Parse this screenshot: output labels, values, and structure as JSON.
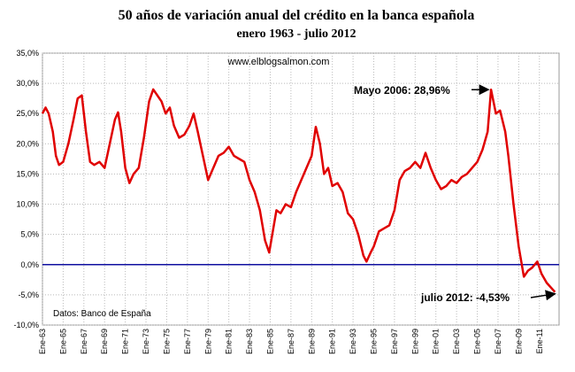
{
  "chart_data": {
    "type": "line",
    "title": "50 años de variación anual del crédito en la banca española",
    "subtitle": "enero 1963 - julio 2012",
    "source_url": "www.elblogsalmon.com",
    "source_note": "Datos: Banco de España",
    "annotations": [
      {
        "text": "Mayo 2006: 28,96%",
        "x": 2006.33,
        "y": 28.96
      },
      {
        "text": "julio 2012: -4,53%",
        "x": 2012.5,
        "y": -4.53
      }
    ],
    "x": [
      1963.0,
      1963.3,
      1963.6,
      1964.0,
      1964.3,
      1964.6,
      1965.0,
      1965.5,
      1966.0,
      1966.4,
      1966.8,
      1967.2,
      1967.6,
      1968.0,
      1968.5,
      1969.0,
      1969.5,
      1970.0,
      1970.3,
      1970.6,
      1971.0,
      1971.4,
      1971.8,
      1972.3,
      1972.8,
      1973.3,
      1973.7,
      1974.1,
      1974.5,
      1974.9,
      1975.3,
      1975.7,
      1976.2,
      1976.7,
      1977.2,
      1977.6,
      1978.0,
      1978.5,
      1979.0,
      1979.5,
      1980.0,
      1980.5,
      1981.0,
      1981.5,
      1982.0,
      1982.5,
      1983.0,
      1983.5,
      1984.0,
      1984.5,
      1984.9,
      1985.3,
      1985.6,
      1986.0,
      1986.5,
      1987.0,
      1987.5,
      1988.0,
      1988.5,
      1989.0,
      1989.4,
      1989.8,
      1990.2,
      1990.6,
      1991.0,
      1991.5,
      1992.0,
      1992.5,
      1993.0,
      1993.5,
      1994.0,
      1994.3,
      1994.7,
      1995.0,
      1995.5,
      1996.0,
      1996.5,
      1997.0,
      1997.5,
      1998.0,
      1998.5,
      1999.0,
      1999.5,
      2000.0,
      2000.5,
      2001.0,
      2001.5,
      2002.0,
      2002.5,
      2003.0,
      2003.5,
      2004.0,
      2004.5,
      2005.0,
      2005.5,
      2006.0,
      2006.33,
      2006.8,
      2007.2,
      2007.7,
      2008.0,
      2008.5,
      2009.0,
      2009.5,
      2009.9,
      2010.3,
      2010.8,
      2011.2,
      2011.7,
      2012.5
    ],
    "series": [
      {
        "name": "Variación anual del crédito",
        "color": "#e00000",
        "values": [
          25,
          26,
          25,
          22,
          18,
          16.5,
          17,
          20,
          24,
          27.5,
          28,
          22,
          17,
          16.5,
          17,
          16,
          20,
          24,
          25.2,
          22,
          16,
          13.5,
          15,
          16,
          21,
          27,
          29,
          28,
          27,
          25,
          26,
          23,
          21,
          21.5,
          23,
          25,
          22,
          18,
          14,
          16,
          18,
          18.5,
          19.5,
          18,
          17.5,
          17,
          14,
          12,
          9,
          4,
          2,
          6,
          9,
          8.5,
          10,
          9.5,
          12,
          14,
          16,
          18,
          22.8,
          20,
          15,
          16,
          13,
          13.5,
          12,
          8.5,
          7.5,
          5,
          1.5,
          0.5,
          2,
          3,
          5.5,
          6,
          6.5,
          9,
          14,
          15.5,
          16,
          17,
          16,
          18.5,
          16,
          14,
          12.5,
          13,
          14,
          13.5,
          14.5,
          15,
          16,
          17,
          19,
          22,
          28.96,
          25,
          25.5,
          22,
          18,
          10,
          3,
          -2,
          -1,
          -0.5,
          0.5,
          -1.5,
          -3,
          -4.53
        ]
      }
    ],
    "xlim": [
      1963,
      2012.9
    ],
    "xticks": [
      {
        "value": 1963,
        "label": "Ene-63"
      },
      {
        "value": 1965,
        "label": "Ene-65"
      },
      {
        "value": 1967,
        "label": "Ene-67"
      },
      {
        "value": 1969,
        "label": "Ene-69"
      },
      {
        "value": 1971,
        "label": "Ene-71"
      },
      {
        "value": 1973,
        "label": "Ene-73"
      },
      {
        "value": 1975,
        "label": "Ene-75"
      },
      {
        "value": 1977,
        "label": "Ene-77"
      },
      {
        "value": 1979,
        "label": "Ene-79"
      },
      {
        "value": 1981,
        "label": "Ene-81"
      },
      {
        "value": 1983,
        "label": "Ene-83"
      },
      {
        "value": 1985,
        "label": "Ene-85"
      },
      {
        "value": 1987,
        "label": "Ene-87"
      },
      {
        "value": 1989,
        "label": "Ene-89"
      },
      {
        "value": 1991,
        "label": "Ene-91"
      },
      {
        "value": 1993,
        "label": "Ene-93"
      },
      {
        "value": 1995,
        "label": "Ene-95"
      },
      {
        "value": 1997,
        "label": "Ene-97"
      },
      {
        "value": 1999,
        "label": "Ene-99"
      },
      {
        "value": 2001,
        "label": "Ene-01"
      },
      {
        "value": 2003,
        "label": "Ene-03"
      },
      {
        "value": 2005,
        "label": "Ene-05"
      },
      {
        "value": 2007,
        "label": "Ene-07"
      },
      {
        "value": 2009,
        "label": "Ene-09"
      },
      {
        "value": 2011,
        "label": "Ene-11"
      }
    ],
    "ylim": [
      -10,
      35
    ],
    "yticks": [
      {
        "value": -10,
        "label": "-10,0%"
      },
      {
        "value": -5,
        "label": "-5,0%"
      },
      {
        "value": 0,
        "label": "0,0%"
      },
      {
        "value": 5,
        "label": "5,0%"
      },
      {
        "value": 10,
        "label": "10,0%"
      },
      {
        "value": 15,
        "label": "15,0%"
      },
      {
        "value": 20,
        "label": "20,0%"
      },
      {
        "value": 25,
        "label": "25,0%"
      },
      {
        "value": 30,
        "label": "30,0%"
      },
      {
        "value": 35,
        "label": "35,0%"
      }
    ],
    "grid": true,
    "reference_line": {
      "value": 0,
      "color": "#1010a0"
    }
  }
}
